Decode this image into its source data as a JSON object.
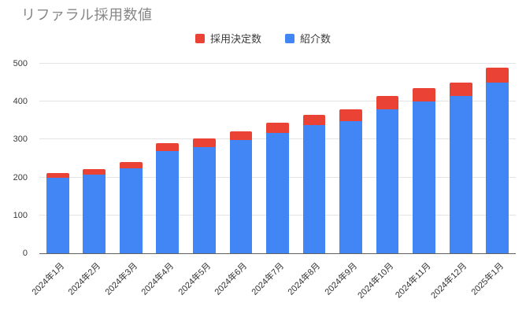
{
  "title": "リファラル採用数値",
  "legend": [
    {
      "label": "採用決定数",
      "color": "#EA4335"
    },
    {
      "label": "紹介数",
      "color": "#4285F4"
    }
  ],
  "colors": {
    "bar_blue": "#4285F4",
    "bar_red": "#EA4335",
    "gridline": "#E4E4E4",
    "axis_line": "#616161",
    "title_text": "#868686",
    "tick_text": "#333333"
  },
  "chart_data": {
    "type": "bar",
    "stacked": true,
    "title": "リファラル採用数値",
    "categories": [
      "2024年1月",
      "2024年2月",
      "2024年3月",
      "2024年4月",
      "2024年5月",
      "2024年6月",
      "2024年7月",
      "2024年8月",
      "2024年9月",
      "2024年10月",
      "2024年11月",
      "2024年12月",
      "2025年1月"
    ],
    "series": [
      {
        "name": "紹介数",
        "color": "#4285F4",
        "values": [
          200,
          208,
          224,
          270,
          281,
          298,
          317,
          338,
          349,
          380,
          401,
          414,
          451
        ]
      },
      {
        "name": "採用決定数",
        "color": "#EA4335",
        "values": [
          12,
          13,
          16,
          20,
          22,
          24,
          27,
          27,
          31,
          34,
          34,
          37,
          39
        ]
      }
    ],
    "stack_totals": [
      212,
      221,
      240,
      290,
      303,
      322,
      344,
      365,
      380,
      414,
      435,
      451,
      490
    ],
    "xlabel": "",
    "ylabel": "",
    "ylim": [
      0,
      500
    ],
    "yticks": [
      0,
      100,
      200,
      300,
      400,
      500
    ],
    "grid": true,
    "legend_position": "top",
    "x_tick_rotation_deg": 45
  }
}
